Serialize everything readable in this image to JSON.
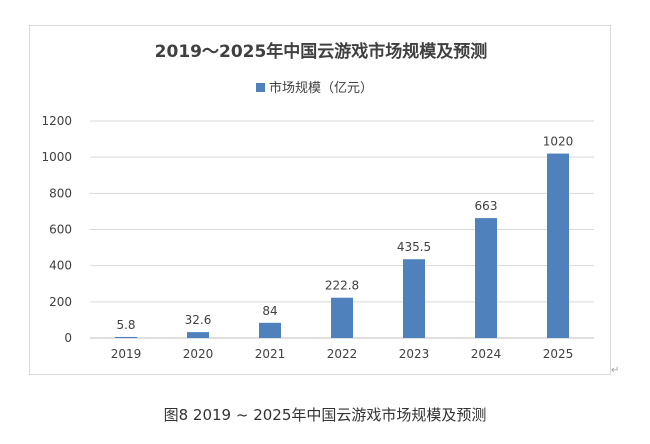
{
  "chart_data": {
    "type": "bar",
    "title": "2019～2025年中国云游戏市场规模及预测",
    "categories": [
      "2019",
      "2020",
      "2021",
      "2022",
      "2023",
      "2024",
      "2025"
    ],
    "series": [
      {
        "name": "市场规模（亿元）",
        "values": [
          5.8,
          32.6,
          84,
          222.8,
          435.5,
          663,
          1020
        ],
        "value_labels": [
          "5.8",
          "32.6",
          "84",
          "222.8",
          "435.5",
          "663",
          "1020"
        ]
      }
    ],
    "ylim": [
      0,
      1200
    ],
    "yticks": [
      0,
      200,
      400,
      600,
      800,
      1000,
      1200
    ],
    "xlabel": "",
    "ylabel": "",
    "grid": true,
    "legend_position": "top",
    "bar_color": "#4f81bd"
  },
  "caption": "图8  2019 ~ 2025年中国云游戏市场规模及预测"
}
